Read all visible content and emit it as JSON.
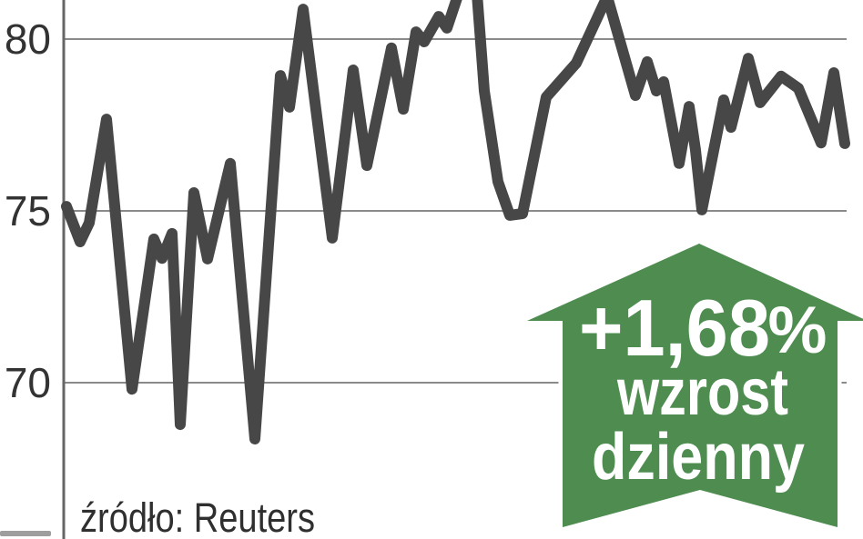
{
  "chart_data": {
    "type": "line",
    "title": "",
    "source": "źródło: Reuters",
    "grid": "horizontal",
    "legend": "none",
    "xlabel": "",
    "ylabel": "",
    "ylim": [
      68,
      81.7
    ],
    "y_ticks": [
      {
        "label": "80",
        "value": 80
      },
      {
        "label": "75",
        "value": 75
      },
      {
        "label": "70",
        "value": 70
      }
    ],
    "series": [
      {
        "points": [
          [
            73,
            75.13
          ],
          [
            88,
            74.1
          ],
          [
            98,
            74.65
          ],
          [
            117,
            77.67
          ],
          [
            145,
            69.81
          ],
          [
            169,
            74.18
          ],
          [
            178,
            73.62
          ],
          [
            189,
            74.34
          ],
          [
            198,
            68.78
          ],
          [
            213,
            75.53
          ],
          [
            228,
            73.6
          ],
          [
            253,
            76.38
          ],
          [
            280,
            68.36
          ],
          [
            308,
            78.94
          ],
          [
            318,
            78.02
          ],
          [
            333,
            80.87
          ],
          [
            365,
            74.21
          ],
          [
            388,
            79.1
          ],
          [
            403,
            76.32
          ],
          [
            430,
            79.74
          ],
          [
            443,
            77.96
          ],
          [
            457,
            80.21
          ],
          [
            466,
            79.92
          ],
          [
            482,
            80.66
          ],
          [
            491,
            80.32
          ],
          [
            508,
            81.67
          ],
          [
            523,
            81.67
          ],
          [
            532,
            78.49
          ],
          [
            547,
            75.85
          ],
          [
            560,
            74.87
          ],
          [
            574,
            74.92
          ],
          [
            600,
            78.31
          ],
          [
            633,
            79.3
          ],
          [
            667,
            81.24
          ],
          [
            698,
            78.36
          ],
          [
            711,
            79.34
          ],
          [
            721,
            78.49
          ],
          [
            729,
            78.76
          ],
          [
            746,
            76.38
          ],
          [
            757,
            78.04
          ],
          [
            764,
            76.77
          ],
          [
            771,
            75.03
          ],
          [
            795,
            78.23
          ],
          [
            803,
            77.43
          ],
          [
            822,
            79.44
          ],
          [
            835,
            78.15
          ],
          [
            858,
            78.92
          ],
          [
            877,
            78.57
          ],
          [
            902,
            76.98
          ],
          [
            916,
            79.02
          ],
          [
            928,
            76.96
          ]
        ]
      }
    ]
  },
  "badge": {
    "change": "+1,68",
    "percent_sign": "%",
    "line2": "wzrost",
    "line3": "dzienny",
    "direction": "up",
    "color": "#4e8c50",
    "text_color": "#ffffff"
  },
  "colors": {
    "background": "#ffffff",
    "line": "#474747",
    "grid": "#8a8a8a",
    "axis": "#666666",
    "tick_text": "#333333",
    "source_text": "#2f2f2f",
    "artifact": "#9e9e9e"
  }
}
